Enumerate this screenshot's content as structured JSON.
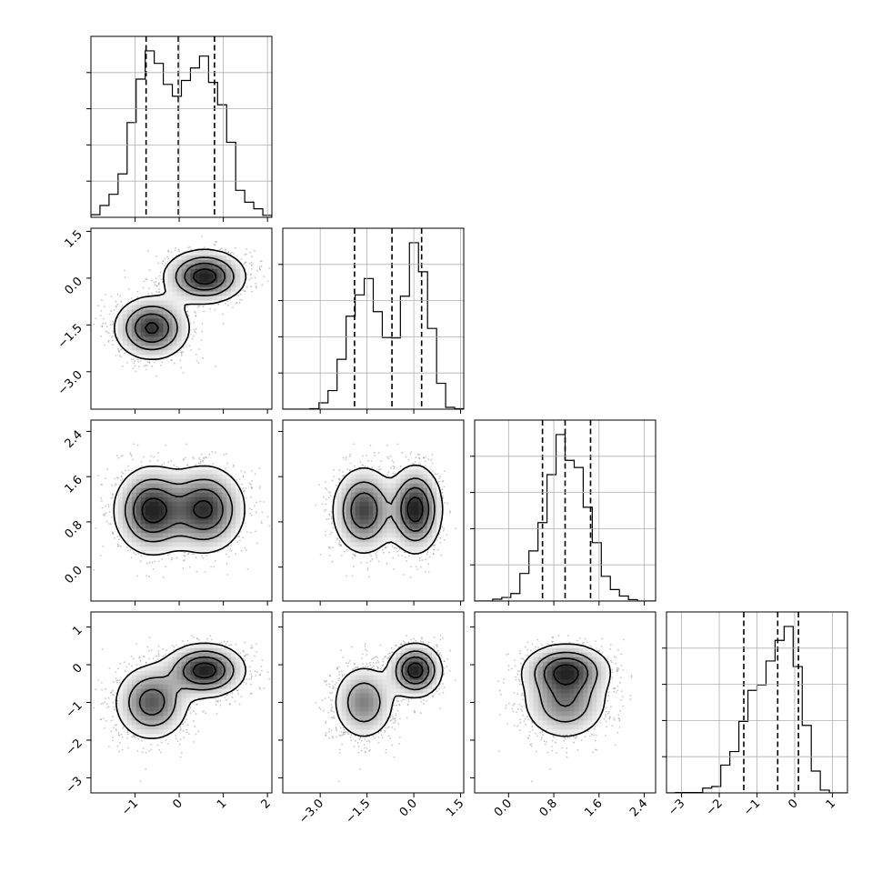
{
  "chart_data": {
    "type": "corner",
    "parameters": [
      {
        "range": [
          -2.0,
          2.1
        ],
        "ticks": [
          -1,
          0,
          1,
          2
        ],
        "tick_labels": [
          "−1",
          "0",
          "1",
          "2"
        ],
        "quantiles": [
          -0.75,
          -0.02,
          0.8
        ],
        "components": [
          {
            "mean": -0.62,
            "sd": 0.42,
            "weight": 0.5
          },
          {
            "mean": 0.58,
            "sd": 0.45,
            "weight": 0.5
          }
        ]
      },
      {
        "range": [
          -4.2,
          1.6
        ],
        "ticks": [
          -3.0,
          -1.5,
          0.0,
          1.5
        ],
        "tick_labels": [
          "−3.0",
          "−1.5",
          "0.0",
          "1.5"
        ],
        "quantiles": [
          -1.9,
          -0.7,
          0.25
        ],
        "components": [
          {
            "mean": -1.6,
            "sd": 0.5,
            "weight": 0.5
          },
          {
            "mean": 0.05,
            "sd": 0.42,
            "weight": 0.5
          }
        ]
      },
      {
        "range": [
          -0.6,
          2.6
        ],
        "ticks": [
          0.0,
          0.8,
          1.6,
          2.4
        ],
        "tick_labels": [
          "0.0",
          "0.8",
          "1.6",
          "2.4"
        ],
        "quantiles": [
          0.6,
          1.0,
          1.45
        ],
        "components": [
          {
            "mean": 1.0,
            "sd": 0.38,
            "weight": 0.5
          },
          {
            "mean": 1.02,
            "sd": 0.38,
            "weight": 0.5
          }
        ]
      },
      {
        "range": [
          -3.4,
          1.4
        ],
        "ticks": [
          -3,
          -2,
          -1,
          0,
          1
        ],
        "tick_labels": [
          "−3",
          "−2",
          "−1",
          "0",
          "1"
        ],
        "quantiles": [
          -1.35,
          -0.45,
          0.1
        ],
        "components": [
          {
            "mean": -1.0,
            "sd": 0.5,
            "weight": 0.5
          },
          {
            "mean": -0.15,
            "sd": 0.35,
            "weight": 0.5
          }
        ]
      }
    ],
    "grid": true,
    "histogram_bins": 20,
    "contour_levels": [
      0.12,
      0.35,
      0.6,
      0.85
    ],
    "histogram_ymax": 0.62
  }
}
